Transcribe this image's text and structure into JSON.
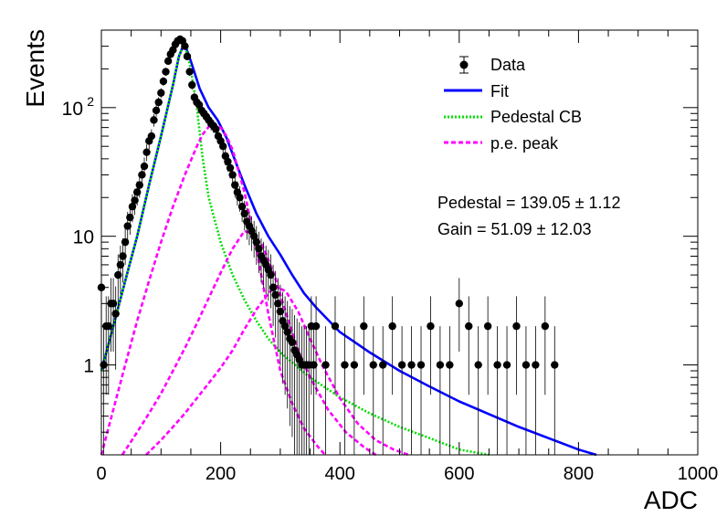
{
  "chart_data": {
    "type": "line",
    "xlabel": "ADC",
    "ylabel": "Events",
    "xlim": [
      0,
      1000
    ],
    "ylim": [
      0.2,
      400
    ],
    "yscale": "log",
    "grid": false,
    "legend_position": "top-right",
    "x_ticks": [
      {
        "value": 0,
        "label": "0"
      },
      {
        "value": 200,
        "label": "200"
      },
      {
        "value": 400,
        "label": "400"
      },
      {
        "value": 600,
        "label": "600"
      },
      {
        "value": 800,
        "label": "800"
      },
      {
        "value": 1000,
        "label": "1000"
      }
    ],
    "y_ticks": [
      {
        "value": 1,
        "label": "1"
      },
      {
        "value": 10,
        "label": "10"
      },
      {
        "value": 100,
        "label": "10",
        "exponent": "2"
      }
    ],
    "legend": [
      {
        "label": "Data",
        "color": "#000000",
        "style": "marker"
      },
      {
        "label": "Fit",
        "color": "#0000ff",
        "style": "solid"
      },
      {
        "label": "Pedestal CB",
        "color": "#00dd00",
        "style": "dotted"
      },
      {
        "label": "p.e. peak",
        "color": "#ff00ff",
        "style": "dashed"
      }
    ],
    "annotations": [
      {
        "text": "Pedestal = 139.05 ± 1.12"
      },
      {
        "text": "Gain = 51.09 ± 12.03"
      }
    ],
    "fit_parameters": {
      "pedestal": 139.05,
      "pedestal_error": 1.12,
      "gain": 51.09,
      "gain_error": 12.03
    },
    "data": {
      "name": "Data",
      "x": [
        0,
        4,
        8,
        12,
        16,
        20,
        24,
        28,
        32,
        36,
        40,
        44,
        48,
        52,
        56,
        60,
        64,
        68,
        72,
        76,
        80,
        84,
        88,
        92,
        96,
        100,
        104,
        108,
        112,
        116,
        120,
        124,
        128,
        132,
        136,
        140,
        144,
        148,
        152,
        156,
        160,
        164,
        168,
        172,
        176,
        180,
        184,
        188,
        192,
        196,
        200,
        204,
        208,
        212,
        216,
        220,
        224,
        228,
        232,
        236,
        240,
        244,
        248,
        252,
        256,
        260,
        264,
        268,
        272,
        276,
        280,
        284,
        288,
        292,
        296,
        300,
        304,
        308,
        312,
        316,
        320,
        324,
        328,
        332,
        336,
        340,
        344,
        348,
        352,
        356,
        360,
        376,
        392,
        408,
        424,
        440,
        456,
        472,
        488,
        504,
        520,
        536,
        552,
        568,
        584,
        600,
        616,
        632,
        648,
        664,
        680,
        696,
        712,
        728,
        744,
        760
      ],
      "y": [
        4,
        1,
        2,
        2,
        3,
        3,
        2.5,
        5,
        6,
        7,
        9,
        12,
        14,
        17,
        19,
        22,
        25,
        30,
        35,
        45,
        55,
        60,
        80,
        95,
        110,
        130,
        160,
        190,
        230,
        260,
        280,
        310,
        330,
        340,
        330,
        300,
        250,
        190,
        150,
        120,
        110,
        105,
        95,
        90,
        85,
        80,
        75,
        72,
        68,
        60,
        55,
        50,
        42,
        38,
        34,
        30,
        25,
        22,
        20,
        17,
        15,
        13,
        12,
        11,
        10,
        9,
        8,
        7,
        6.5,
        6,
        5.5,
        5,
        4,
        3.5,
        3,
        2.6,
        2.2,
        2,
        1.8,
        1.6,
        1.5,
        1.3,
        1.2,
        1.1,
        1,
        1,
        1,
        1,
        2,
        1,
        2,
        1,
        2,
        1,
        1,
        2,
        1,
        1,
        2,
        1,
        1,
        1,
        2,
        1,
        1,
        3,
        2,
        1,
        2,
        1,
        1,
        2,
        1,
        1,
        2,
        1
      ]
    },
    "series": [
      {
        "name": "Fit",
        "x": [
          0,
          20,
          40,
          60,
          80,
          100,
          120,
          130,
          139,
          150,
          165,
          180,
          195,
          210,
          225,
          240,
          260,
          280,
          300,
          320,
          340,
          360,
          400,
          450,
          500,
          550,
          600,
          700,
          800,
          830
        ],
        "y": [
          0.9,
          2,
          4.5,
          10,
          25,
          60,
          150,
          250,
          320,
          230,
          140,
          100,
          80,
          58,
          38,
          25,
          15,
          10,
          7.2,
          5,
          3.6,
          2.8,
          1.8,
          1.25,
          0.9,
          0.68,
          0.52,
          0.33,
          0.22,
          0.2
        ]
      },
      {
        "name": "Pedestal CB",
        "x": [
          0,
          20,
          40,
          60,
          80,
          100,
          120,
          130,
          139,
          150,
          160,
          170,
          180,
          200,
          220,
          240,
          260,
          280,
          300,
          350,
          400,
          450,
          500,
          550,
          600,
          650
        ],
        "y": [
          0.9,
          2,
          4.5,
          10,
          25,
          60,
          150,
          250,
          320,
          200,
          100,
          40,
          20,
          9,
          5,
          3.2,
          2.2,
          1.6,
          1.25,
          0.8,
          0.56,
          0.42,
          0.33,
          0.27,
          0.22,
          0.2
        ]
      },
      {
        "name": "p.e. peak 1",
        "x": [
          0,
          20,
          40,
          60,
          80,
          100,
          120,
          140,
          160,
          170,
          180,
          190,
          200,
          210,
          220,
          240,
          260,
          280,
          300,
          320,
          340,
          360,
          375
        ],
        "y": [
          0.2,
          0.45,
          1,
          2.2,
          4.5,
          9,
          17,
          30,
          50,
          62,
          71,
          74,
          70,
          60,
          47,
          22,
          8,
          2.5,
          0.9,
          0.5,
          0.32,
          0.24,
          0.2
        ]
      },
      {
        "name": "p.e. peak 2",
        "x": [
          35,
          60,
          80,
          100,
          120,
          140,
          160,
          180,
          200,
          220,
          240,
          255,
          270,
          290,
          310,
          330,
          350,
          380,
          410,
          440,
          460
        ],
        "y": [
          0.2,
          0.3,
          0.42,
          0.6,
          0.9,
          1.35,
          2.1,
          3.3,
          5.2,
          8,
          11,
          10.3,
          8.5,
          5,
          2.5,
          1.3,
          0.8,
          0.45,
          0.3,
          0.23,
          0.2
        ]
      },
      {
        "name": "p.e. peak 3",
        "x": [
          75,
          100,
          120,
          140,
          160,
          180,
          200,
          220,
          240,
          260,
          280,
          293,
          310,
          330,
          350,
          370,
          400,
          430,
          460,
          490,
          515
        ],
        "y": [
          0.2,
          0.26,
          0.33,
          0.42,
          0.55,
          0.72,
          0.95,
          1.3,
          1.9,
          2.7,
          3.6,
          4.1,
          3.7,
          2.6,
          1.6,
          1,
          0.55,
          0.35,
          0.26,
          0.22,
          0.2
        ]
      }
    ]
  }
}
